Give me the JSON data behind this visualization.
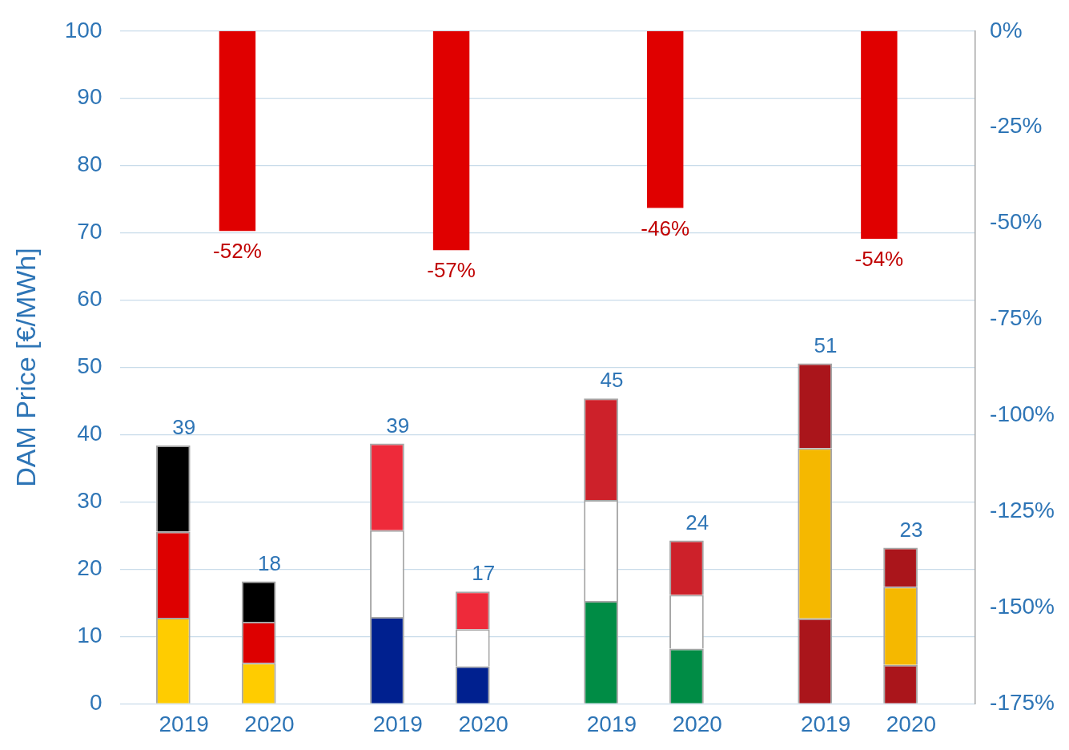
{
  "chart_data": {
    "type": "bar",
    "ylabel": "DAM Price [€/MWh]",
    "categories": [
      null,
      "2019",
      null,
      "2020",
      null,
      null,
      "2019",
      null,
      "2020",
      null,
      null,
      "2019",
      null,
      "2020",
      null,
      null,
      "2019",
      null,
      "2020",
      null
    ],
    "stacked": true,
    "grid": "y",
    "ylim": [
      0,
      100
    ],
    "yticks": [
      0,
      10,
      20,
      30,
      40,
      50,
      60,
      70,
      80,
      90,
      100
    ],
    "y2lim": [
      -175,
      0
    ],
    "y2ticks": [
      {
        "value": -175,
        "label": "-175%"
      },
      {
        "value": -150,
        "label": "-150%"
      },
      {
        "value": -125,
        "label": "-125%"
      },
      {
        "value": -100,
        "label": "-100%"
      },
      {
        "value": -75,
        "label": "-75%"
      },
      {
        "value": -50,
        "label": "-50%"
      },
      {
        "value": -25,
        "label": "-25%"
      },
      {
        "value": 0,
        "label": "0%"
      }
    ],
    "totals": [
      null,
      "39",
      null,
      "18",
      null,
      null,
      "39",
      null,
      "17",
      null,
      null,
      "45",
      null,
      "24",
      null,
      null,
      "51",
      null,
      "23",
      null
    ],
    "series": [
      {
        "values": [
          null,
          12.8,
          null,
          6.1,
          null,
          null,
          12.9,
          null,
          5.6,
          null,
          null,
          15.3,
          null,
          8.2,
          null,
          null,
          12.7,
          null,
          5.8,
          null
        ],
        "colors": [
          null,
          "#ffcc00",
          null,
          "#ffcc00",
          null,
          null,
          "#00208f",
          null,
          "#00208f",
          null,
          null,
          "#008c45",
          null,
          "#008c45",
          null,
          null,
          "#aa151b",
          null,
          "#aa151b",
          null
        ]
      },
      {
        "values": [
          null,
          12.8,
          null,
          6.1,
          null,
          null,
          12.9,
          null,
          5.5,
          null,
          null,
          15.0,
          null,
          8.0,
          null,
          null,
          25.3,
          null,
          11.6,
          null
        ],
        "colors": [
          null,
          "#dd0000",
          null,
          "#dd0000",
          null,
          null,
          "#ffffff",
          null,
          "#ffffff",
          null,
          null,
          "#ffffff",
          null,
          "#ffffff",
          null,
          null,
          "#f5b800",
          null,
          "#f5b800",
          null
        ]
      },
      {
        "values": [
          null,
          12.8,
          null,
          6.0,
          null,
          null,
          12.9,
          null,
          5.6,
          null,
          null,
          15.1,
          null,
          8.1,
          null,
          null,
          12.6,
          null,
          5.8,
          null
        ],
        "colors": [
          null,
          "#000000",
          null,
          "#000000",
          null,
          null,
          "#ee2a3a",
          null,
          "#ee2a3a",
          null,
          null,
          "#cd212a",
          null,
          "#cd212a",
          null,
          null,
          "#aa151b",
          null,
          "#aa151b",
          null
        ]
      },
      {
        "axis": "y2",
        "color": "#e00000",
        "values": [
          null,
          null,
          -52,
          null,
          null,
          null,
          null,
          -57,
          null,
          null,
          null,
          null,
          -46,
          null,
          null,
          null,
          null,
          -54,
          null,
          null
        ],
        "value_labels": [
          null,
          null,
          "-52%",
          null,
          null,
          null,
          null,
          "-57%",
          null,
          null,
          null,
          null,
          "-46%",
          null,
          null,
          null,
          null,
          "-54%",
          null,
          null
        ]
      }
    ]
  }
}
